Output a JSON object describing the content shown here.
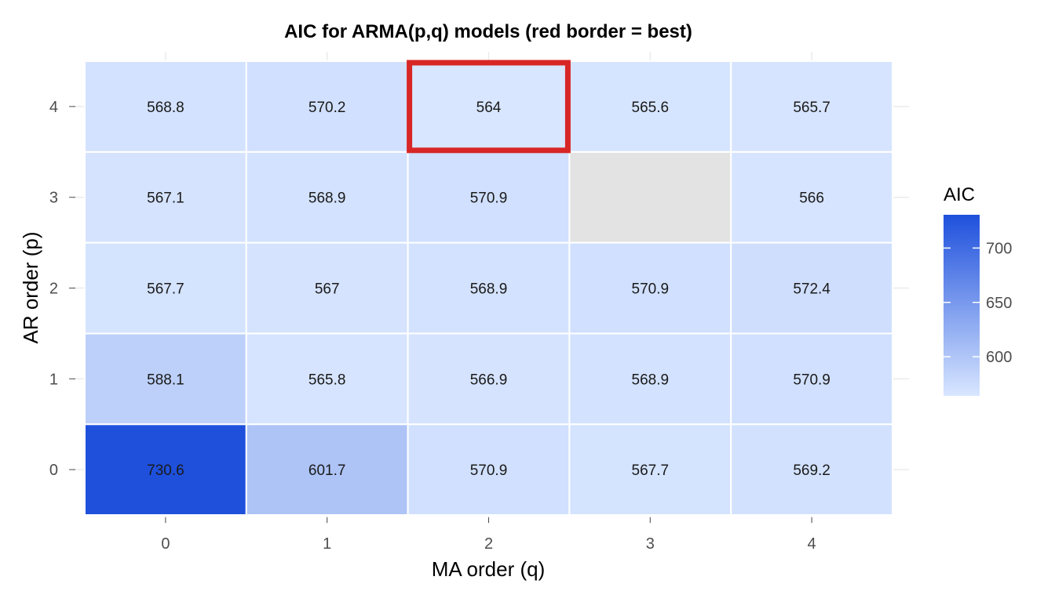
{
  "chart_data": {
    "type": "heatmap",
    "title": "AIC for ARMA(p,q) models (red border = best)",
    "xlabel": "MA order (q)",
    "ylabel": "AR order (p)",
    "x_categories": [
      "0",
      "1",
      "2",
      "3",
      "4"
    ],
    "y_categories": [
      "0",
      "1",
      "2",
      "3",
      "4"
    ],
    "cells": [
      {
        "p": 0,
        "q": 0,
        "aic": 730.6
      },
      {
        "p": 0,
        "q": 1,
        "aic": 601.7
      },
      {
        "p": 0,
        "q": 2,
        "aic": 570.9
      },
      {
        "p": 0,
        "q": 3,
        "aic": 567.7
      },
      {
        "p": 0,
        "q": 4,
        "aic": 569.2
      },
      {
        "p": 1,
        "q": 0,
        "aic": 588.1
      },
      {
        "p": 1,
        "q": 1,
        "aic": 565.8
      },
      {
        "p": 1,
        "q": 2,
        "aic": 566.9
      },
      {
        "p": 1,
        "q": 3,
        "aic": 568.9
      },
      {
        "p": 1,
        "q": 4,
        "aic": 570.9
      },
      {
        "p": 2,
        "q": 0,
        "aic": 567.7
      },
      {
        "p": 2,
        "q": 1,
        "aic": 567
      },
      {
        "p": 2,
        "q": 2,
        "aic": 568.9
      },
      {
        "p": 2,
        "q": 3,
        "aic": 570.9
      },
      {
        "p": 2,
        "q": 4,
        "aic": 572.4
      },
      {
        "p": 3,
        "q": 0,
        "aic": 567.1
      },
      {
        "p": 3,
        "q": 1,
        "aic": 568.9
      },
      {
        "p": 3,
        "q": 2,
        "aic": 570.9
      },
      {
        "p": 3,
        "q": 3,
        "aic": null
      },
      {
        "p": 3,
        "q": 4,
        "aic": 566
      },
      {
        "p": 4,
        "q": 0,
        "aic": 568.8
      },
      {
        "p": 4,
        "q": 1,
        "aic": 570.2
      },
      {
        "p": 4,
        "q": 2,
        "aic": 564
      },
      {
        "p": 4,
        "q": 3,
        "aic": 565.6
      },
      {
        "p": 4,
        "q": 4,
        "aic": 565.7
      }
    ],
    "best": {
      "p": 4,
      "q": 2
    },
    "legend": {
      "title": "AIC",
      "ticks": [
        600,
        650,
        700
      ],
      "range": [
        564,
        730.6
      ],
      "position": "right"
    },
    "colors": {
      "low": "#d8e6ff",
      "high": "#1e50dc",
      "missing": "#e3e3e3",
      "best_border": "#d82626",
      "grid": "#ebebeb"
    },
    "grid": true
  }
}
